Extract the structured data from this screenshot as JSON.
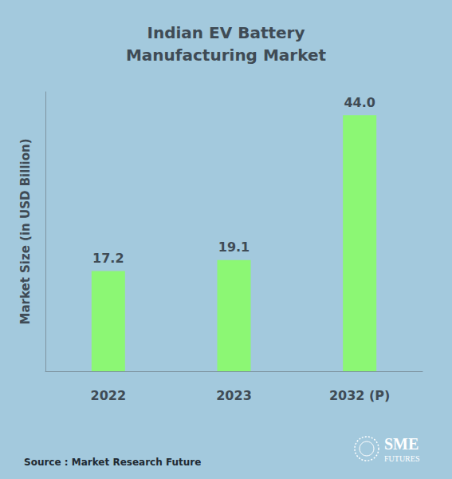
{
  "chart_data": {
    "type": "bar",
    "title": "Indian EV Battery\nManufacturing Market",
    "y_label": "Market Size (in USD Billion)",
    "categories": [
      "2022",
      "2023",
      "2032 (P)"
    ],
    "values": [
      17.2,
      19.1,
      44.0
    ],
    "value_labels": [
      "17.2",
      "19.1",
      "44.0"
    ],
    "color": "#8cf774",
    "ylim": [
      0,
      48
    ],
    "grid": false,
    "data_labels": true,
    "tick_labels": "x",
    "source": "Source : Market Research Future",
    "logo": [
      "SME",
      "FUTURES"
    ]
  }
}
